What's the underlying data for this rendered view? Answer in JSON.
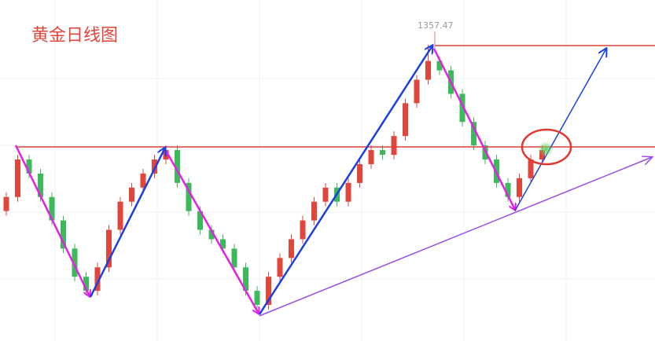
{
  "chart_data": {
    "type": "candlestick",
    "title": "黄金日线图",
    "annotations": [
      "1357.47"
    ],
    "ylim": [
      1294.3,
      1367
    ],
    "up_color": "#e0463c",
    "down_color": "#3cb95a",
    "open": [
      1322,
      1325,
      1333,
      1330,
      1325,
      1320,
      1314,
      1308,
      1305,
      1310,
      1318,
      1324,
      1327,
      1330,
      1333,
      1335,
      1328,
      1322,
      1318,
      1316,
      1314,
      1310,
      1305,
      1302,
      1308,
      1312,
      1316,
      1320,
      1324,
      1327,
      1324,
      1328,
      1332,
      1335,
      1334,
      1338,
      1345,
      1350,
      1354,
      1352,
      1347,
      1341,
      1336,
      1333,
      1328,
      1325,
      1329,
      1333
    ],
    "close": [
      1325,
      1333,
      1330,
      1325,
      1320,
      1314,
      1308,
      1305,
      1310,
      1318,
      1324,
      1327,
      1330,
      1333,
      1335,
      1328,
      1322,
      1318,
      1316,
      1314,
      1310,
      1305,
      1302,
      1308,
      1312,
      1316,
      1320,
      1324,
      1327,
      1324,
      1328,
      1332,
      1335,
      1334,
      1338,
      1345,
      1350,
      1354,
      1352,
      1347,
      1341,
      1336,
      1333,
      1328,
      1325,
      1329,
      1333,
      1335
    ],
    "high": [
      1326,
      1334,
      1334,
      1331,
      1326,
      1321,
      1315,
      1309,
      1311,
      1319,
      1325,
      1328,
      1331,
      1334,
      1336,
      1336,
      1329,
      1323,
      1319,
      1317,
      1315,
      1311,
      1306,
      1309,
      1313,
      1317,
      1321,
      1325,
      1328,
      1328,
      1329,
      1333,
      1336,
      1336,
      1339,
      1346,
      1351,
      1357.47,
      1355,
      1353,
      1348,
      1342,
      1337,
      1334,
      1329,
      1330,
      1334,
      1336
    ],
    "low": [
      1321,
      1324,
      1329,
      1324,
      1319,
      1313,
      1307,
      1304,
      1304,
      1309,
      1317,
      1323,
      1326,
      1329,
      1332,
      1327,
      1321,
      1317,
      1315,
      1313,
      1309,
      1304,
      1301,
      1301,
      1307,
      1311,
      1315,
      1319,
      1323,
      1323,
      1323,
      1327,
      1331,
      1333,
      1333,
      1337,
      1344,
      1349,
      1351,
      1346,
      1340,
      1335,
      1332,
      1327,
      1324,
      1324,
      1328,
      1332
    ]
  }
}
